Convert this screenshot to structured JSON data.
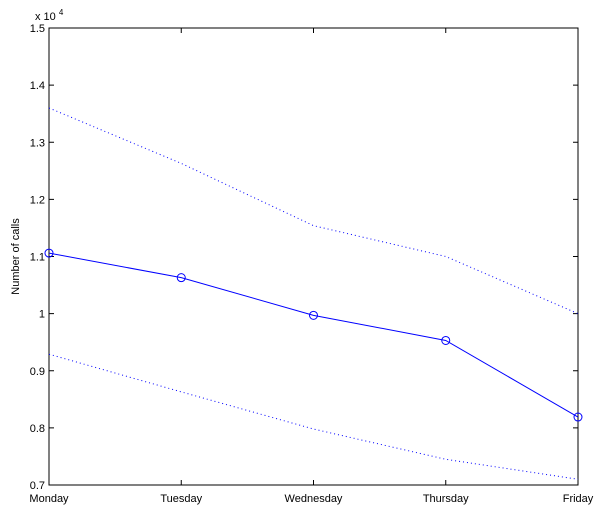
{
  "chart_data": {
    "type": "line",
    "categories": [
      "Monday",
      "Tuesday",
      "Wednesday",
      "Thursday",
      "Friday"
    ],
    "series": [
      {
        "role": "mean",
        "values": [
          11060,
          10630,
          9970,
          9530,
          8190
        ],
        "color": "#0000ff",
        "line_style": "solid",
        "marker": "circle"
      },
      {
        "role": "upper-bound",
        "values": [
          13600,
          12630,
          11540,
          11000,
          10000
        ],
        "color": "#0000ff",
        "line_style": "dotted"
      },
      {
        "role": "lower-bound",
        "values": [
          9290,
          8630,
          7980,
          7450,
          7100
        ],
        "color": "#0000ff",
        "line_style": "dotted"
      }
    ],
    "title": "",
    "xlabel": "",
    "ylabel": "Number of calls",
    "ylim": [
      7000,
      15000
    ],
    "yticks": [
      7000,
      8000,
      9000,
      10000,
      11000,
      12000,
      13000,
      14000,
      15000
    ],
    "ytick_labels": [
      "0.7",
      "0.8",
      "0.9",
      "1",
      "1.1",
      "1.2",
      "1.3",
      "1.4",
      "1.5"
    ],
    "exponent_label": {
      "base": "x 10",
      "power": "4"
    },
    "grid": false,
    "legend": "none"
  }
}
